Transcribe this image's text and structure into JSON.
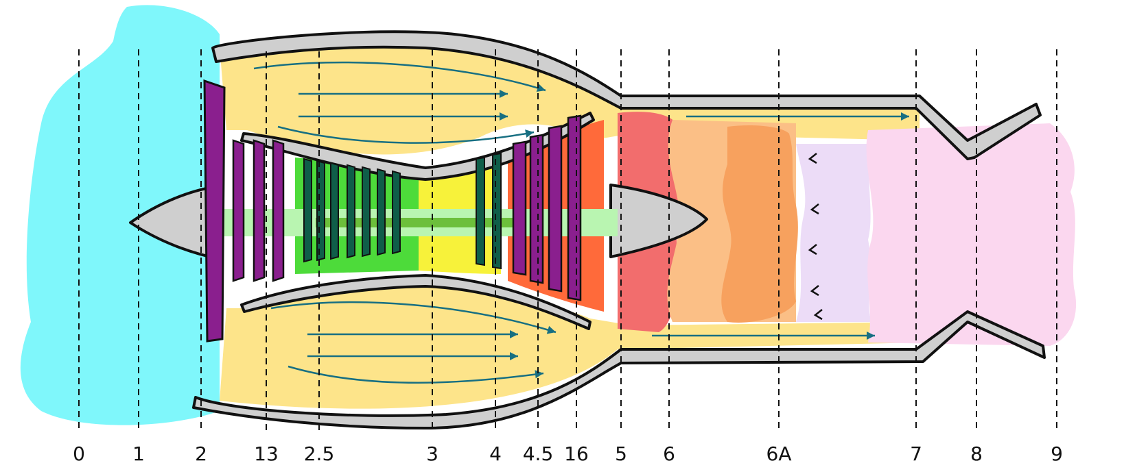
{
  "colors": {
    "intake": "#7ff7fb",
    "bypass": "#fde48a",
    "casing": "#cfcfcf",
    "fan_blade": "#8a1f8e",
    "lpc": "#4ddb3a",
    "hpc_blade": "#0f5e49",
    "hpc_glow": "#f7f23a",
    "hpt_glow": "#ff6a3a",
    "shaft": "#b9f5b1",
    "shaft_core": "#6cbf3b",
    "combustor": "#f26d6d",
    "combustion_orange": "#fbbf86",
    "afterburner": "#f7a15e",
    "mixing_lavender": "#ecdcf7",
    "nozzle_pink": "#fbd7ef",
    "flow_arrow": "#176f82"
  },
  "stations": [
    {
      "label": "0"
    },
    {
      "label": "1"
    },
    {
      "label": "2"
    },
    {
      "label": "13"
    },
    {
      "label": "2.5"
    },
    {
      "label": "3"
    },
    {
      "label": "4"
    },
    {
      "label": "4.5"
    },
    {
      "label": "16"
    },
    {
      "label": "5"
    },
    {
      "label": "6"
    },
    {
      "label": "6A"
    },
    {
      "label": "7"
    },
    {
      "label": "8"
    },
    {
      "label": "9"
    }
  ]
}
